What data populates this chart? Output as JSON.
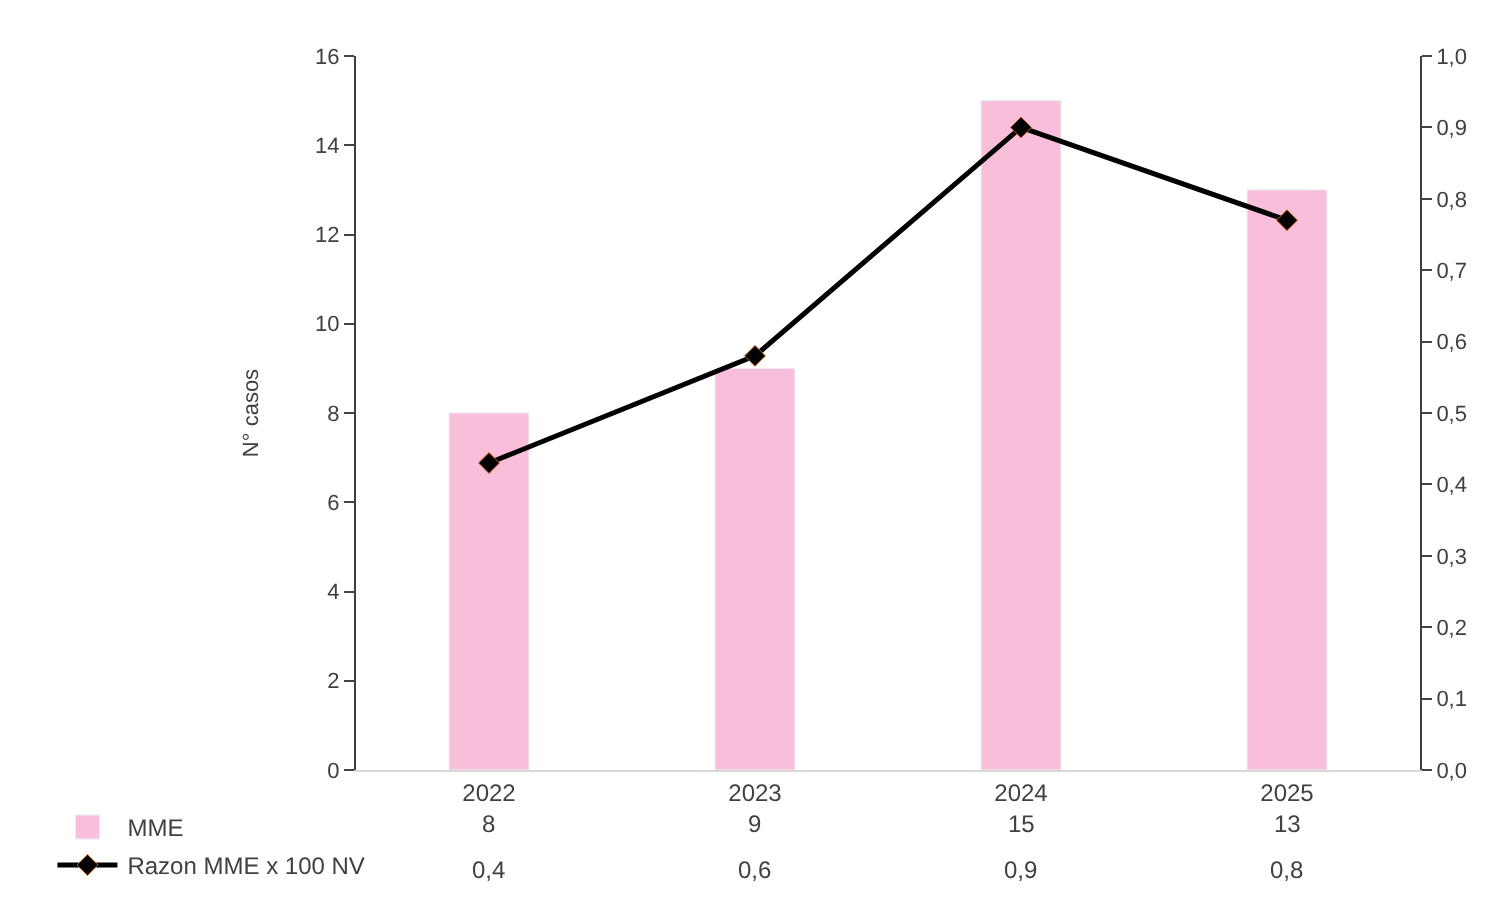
{
  "chart_data": {
    "type": "bar",
    "ylabel": "N° casos",
    "categories": [
      "2022",
      "2023",
      "2024",
      "2025"
    ],
    "series": [
      {
        "name": "MME",
        "color": "#f9bed9",
        "values": [
          8,
          9,
          15,
          13
        ],
        "value_labels": [
          "8",
          "9",
          "15",
          "13"
        ]
      },
      {
        "name": "Razon MME x 100 NV",
        "type": "line",
        "axis": "y2",
        "color": "#000000",
        "values": [
          0.43,
          0.58,
          0.9,
          0.77
        ],
        "value_labels": [
          "0,4",
          "0,6",
          "0,9",
          "0,8"
        ]
      }
    ],
    "ylim": [
      0,
      16
    ],
    "yticks": [
      0,
      2,
      4,
      6,
      8,
      10,
      12,
      14,
      16
    ],
    "y2lim": [
      0,
      1.0
    ],
    "y2ticks": [
      {
        "value": 0,
        "label": "0,0"
      },
      {
        "value": 0.1,
        "label": "0,1"
      },
      {
        "value": 0.2,
        "label": "0,2"
      },
      {
        "value": 0.3,
        "label": "0,3"
      },
      {
        "value": 0.4,
        "label": "0,4"
      },
      {
        "value": 0.5,
        "label": "0,5"
      },
      {
        "value": 0.6,
        "label": "0,6"
      },
      {
        "value": 0.7,
        "label": "0,7"
      },
      {
        "value": 0.8,
        "label": "0,8"
      },
      {
        "value": 0.9,
        "label": "0,9"
      },
      {
        "value": 1.0,
        "label": "1,0"
      }
    ],
    "marker": "diamond",
    "line_style": "solid",
    "legend": "bottom"
  }
}
